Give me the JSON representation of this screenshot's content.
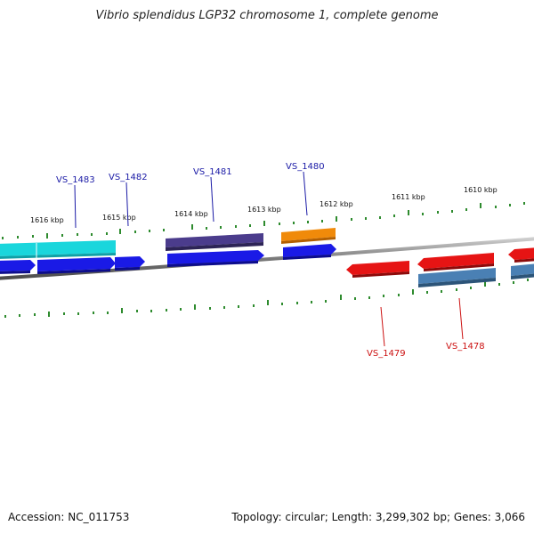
{
  "title": "Vibrio splendidus LGP32 chromosome 1, complete genome",
  "accession": "Accession: NC_011753",
  "summary": "Topology: circular; Length: 3,299,302 bp; Genes: 3,066",
  "colors": {
    "background": "#ffffff",
    "backbone": "#808080",
    "tick": "#2e8b2e",
    "label_forward": "#1a1aa6",
    "label_reverse": "#cc1111"
  },
  "tick_labels": [
    "1616 kbp",
    "1615 kbp",
    "1614 kbp",
    "1613 kbp",
    "1612 kbp",
    "1611 kbp",
    "1610 kbp"
  ],
  "gene_labels": {
    "forward": [
      "VS_1483",
      "VS_1482",
      "VS_1481",
      "VS_1480"
    ],
    "reverse": [
      "VS_1479",
      "VS_1478"
    ]
  },
  "features": [
    {
      "name": "cyan-gene-block",
      "color": "#1ad6dc"
    },
    {
      "name": "blue-gene",
      "color": "#1a1ae6"
    },
    {
      "name": "purple-gene",
      "color": "#4b3c8c"
    },
    {
      "name": "orange-gene",
      "color": "#f08a0a"
    },
    {
      "name": "red-gene",
      "color": "#e61414"
    },
    {
      "name": "steelblue-gene",
      "color": "#4a80b4"
    }
  ]
}
